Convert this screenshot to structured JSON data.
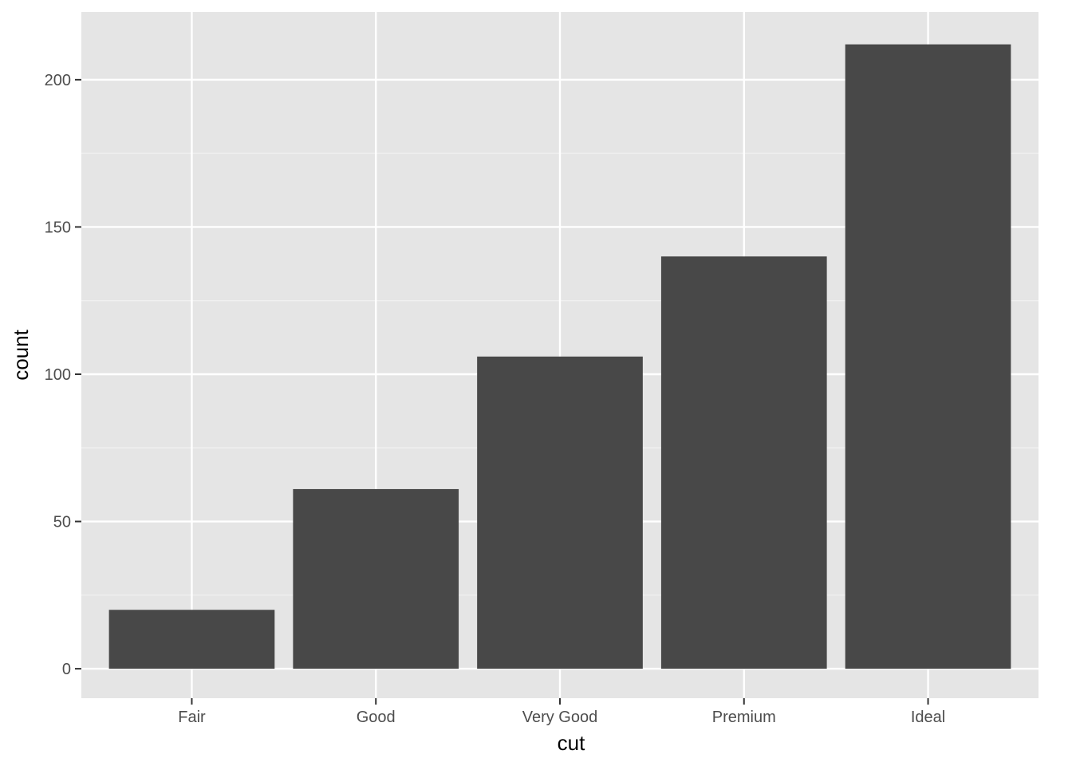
{
  "chart_data": {
    "type": "bar",
    "title": "",
    "xlabel": "cut",
    "ylabel": "count",
    "categories": [
      "Fair",
      "Good",
      "Very Good",
      "Premium",
      "Ideal"
    ],
    "values": [
      20,
      61,
      106,
      140,
      212
    ],
    "ylim": [
      -10,
      223
    ],
    "yticks": [
      0,
      50,
      100,
      150,
      200
    ],
    "ytick_labels": [
      "0",
      "50",
      "100",
      "150",
      "200"
    ],
    "grid": true,
    "legend": "none",
    "colors": {
      "panel_background": "#e5e5e5",
      "grid_major": "#ffffff",
      "grid_minor": "#f2f2f2",
      "bar_fill": "#484848",
      "tick_color": "#333333",
      "tick_label_color": "#4d4d4d",
      "axis_title_color": "#000000"
    }
  }
}
